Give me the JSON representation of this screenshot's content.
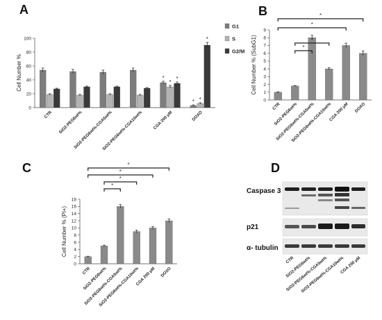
{
  "panels": {
    "a": "A",
    "b": "B",
    "c": "C",
    "d": "D"
  },
  "chart_data": [
    {
      "type": "bar",
      "ylabel": "Cell Number %",
      "ylim": [
        0,
        100
      ],
      "yticks": [
        0,
        20,
        40,
        60,
        80,
        100
      ],
      "categories": [
        "CTR",
        "SiO2-PEG6wt%",
        "SiO2-PEG6wt%-CGA5wt%",
        "SiO2-PEG6wt%-CGA10wt%",
        "CGA 200 μM",
        "DOXO"
      ],
      "series": [
        {
          "name": "G1",
          "color": "#7d7d7d",
          "values": [
            54,
            52,
            51,
            54,
            36,
            3
          ],
          "errors": [
            3,
            3,
            3,
            3,
            2,
            1
          ]
        },
        {
          "name": "S",
          "color": "#b3b3b3",
          "values": [
            19,
            18,
            19,
            18,
            30,
            6
          ],
          "errors": [
            1,
            1,
            1,
            1,
            2,
            1
          ]
        },
        {
          "name": "G2/M",
          "color": "#3a3a3a",
          "values": [
            27,
            30,
            30,
            28,
            35,
            90
          ],
          "errors": [
            1,
            1,
            1,
            1,
            2,
            4
          ]
        }
      ],
      "legend": "right",
      "annotations": [
        "*"
      ]
    },
    {
      "type": "bar",
      "ylabel": "Cell Number % (SubG1)",
      "ylim": [
        0,
        9
      ],
      "yticks": [
        0,
        1,
        2,
        3,
        4,
        5,
        6,
        7,
        8,
        9
      ],
      "categories": [
        "CTR",
        "SiO2-PEG6wt%",
        "SiO2-PEG6wt%-CGA5wt%",
        "SiO2-PEG6wt%-CGA10wt%",
        "CGA 200 μM",
        "DOXO"
      ],
      "values": [
        1,
        1.8,
        8,
        4,
        7,
        6
      ],
      "errors": [
        0.05,
        0.05,
        0.3,
        0.15,
        0.3,
        0.3
      ],
      "annotations": [
        "*",
        "*",
        "*",
        "*"
      ]
    },
    {
      "type": "bar",
      "ylabel": "Cell Number % (Pi+)",
      "ylim": [
        0,
        18
      ],
      "yticks": [
        0,
        2,
        4,
        6,
        8,
        10,
        12,
        14,
        16,
        18
      ],
      "categories": [
        "CTR",
        "SiO2-PEG6wt%",
        "SiO2-PEG6wt%-CGA5wt%",
        "SiO2-PEG6wt%-CGA10wt%",
        "CGA 200 μM",
        "DOXO"
      ],
      "values": [
        2,
        5,
        16,
        9,
        10,
        12
      ],
      "errors": [
        0.1,
        0.2,
        0.5,
        0.4,
        0.4,
        0.5
      ],
      "annotations": [
        "*",
        "*",
        "*",
        "*"
      ]
    }
  ],
  "blot": {
    "rows": [
      "Caspase 3",
      "p21",
      "α- tubulin"
    ],
    "lanes": [
      "CTR",
      "SiO2-PEG6wt%",
      "SiO2-PEG6wt%-CGA5wt%",
      "SiO2-PEG6wt%-CGA10wt%",
      "CGA 200 μM"
    ]
  }
}
